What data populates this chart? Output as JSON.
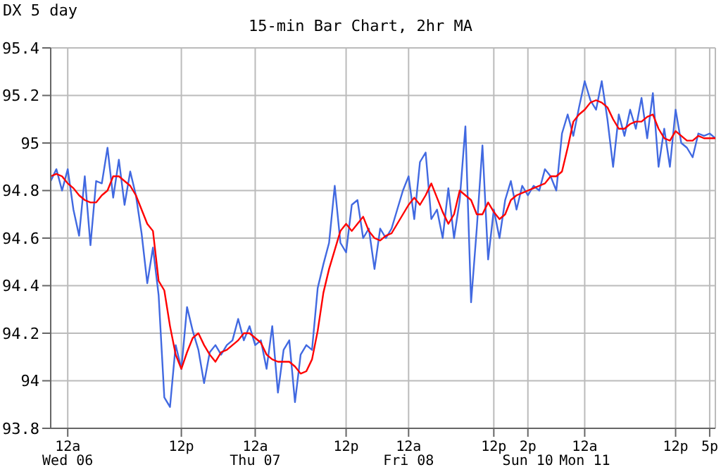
{
  "chart_data": {
    "type": "line",
    "title": "15-min Bar Chart, 2hr MA",
    "subtitle": "DX 5 day",
    "categories": [
      null,
      null,
      null,
      "12a\nWed 06",
      null,
      null,
      null,
      null,
      null,
      null,
      null,
      null,
      null,
      null,
      null,
      null,
      null,
      null,
      null,
      null,
      null,
      null,
      null,
      "12p",
      null,
      null,
      null,
      null,
      null,
      null,
      null,
      null,
      null,
      null,
      null,
      null,
      "12a\nThu 07",
      null,
      null,
      null,
      null,
      null,
      null,
      null,
      null,
      null,
      null,
      null,
      null,
      null,
      null,
      null,
      "12p",
      null,
      null,
      null,
      null,
      null,
      null,
      null,
      null,
      null,
      null,
      "12a\nFri 08",
      null,
      null,
      null,
      null,
      null,
      null,
      null,
      null,
      null,
      null,
      null,
      null,
      null,
      null,
      "12p",
      null,
      null,
      null,
      null,
      null,
      "2p\nSun 10",
      null,
      null,
      null,
      null,
      null,
      null,
      null,
      null,
      null,
      "12a\nMon 11",
      null,
      null,
      null,
      null,
      null,
      null,
      null,
      null,
      null,
      null,
      null,
      null,
      null,
      null,
      null,
      "12p",
      null,
      null,
      null,
      null,
      null,
      "5p",
      null
    ],
    "ylim": [
      93.8,
      95.4
    ],
    "yticks": [
      93.8,
      94,
      94.2,
      94.4,
      94.6,
      94.8,
      95,
      95.2,
      95.4
    ],
    "grid": true,
    "marker": "none",
    "line_style": "solid",
    "series": [
      {
        "color": "#4169e1",
        "values": [
          94.84,
          94.89,
          94.8,
          94.89,
          94.72,
          94.61,
          94.86,
          94.57,
          94.84,
          94.83,
          94.98,
          94.77,
          94.93,
          94.74,
          94.88,
          94.78,
          94.62,
          94.41,
          94.56,
          94.36,
          93.93,
          93.89,
          94.15,
          94.05,
          94.31,
          94.21,
          94.13,
          93.99,
          94.12,
          94.15,
          94.11,
          94.15,
          94.17,
          94.26,
          94.17,
          94.23,
          94.15,
          94.17,
          94.05,
          94.23,
          93.95,
          94.13,
          94.17,
          93.91,
          94.11,
          94.15,
          94.13,
          94.39,
          94.49,
          94.58,
          94.82,
          94.58,
          94.54,
          94.74,
          94.76,
          94.6,
          94.64,
          94.47,
          94.64,
          94.6,
          94.64,
          94.72,
          94.8,
          94.86,
          94.68,
          94.92,
          94.96,
          94.68,
          94.72,
          94.6,
          94.81,
          94.6,
          94.76,
          95.07,
          94.33,
          94.64,
          94.99,
          94.51,
          94.72,
          94.6,
          94.76,
          94.84,
          94.72,
          94.82,
          94.78,
          94.82,
          94.8,
          94.89,
          94.86,
          94.8,
          95.04,
          95.12,
          95.03,
          95.15,
          95.26,
          95.18,
          95.14,
          95.26,
          95.1,
          94.9,
          95.12,
          95.03,
          95.14,
          95.06,
          95.19,
          95.02,
          95.21,
          94.9,
          95.06,
          94.9,
          95.14,
          95,
          94.98,
          94.94,
          95.04,
          95.03,
          95.04,
          95.02
        ]
      },
      {
        "color": "#ff0000",
        "values": [
          94.86,
          94.87,
          94.86,
          94.83,
          94.81,
          94.78,
          94.76,
          94.75,
          94.75,
          94.78,
          94.8,
          94.86,
          94.86,
          94.84,
          94.82,
          94.78,
          94.72,
          94.66,
          94.63,
          94.42,
          94.38,
          94.23,
          94.11,
          94.05,
          94.12,
          94.18,
          94.2,
          94.15,
          94.11,
          94.08,
          94.12,
          94.13,
          94.15,
          94.17,
          94.2,
          94.2,
          94.18,
          94.16,
          94.11,
          94.09,
          94.08,
          94.08,
          94.08,
          94.06,
          94.03,
          94.04,
          94.09,
          94.21,
          94.37,
          94.47,
          94.55,
          94.63,
          94.66,
          94.63,
          94.66,
          94.69,
          94.63,
          94.6,
          94.59,
          94.61,
          94.62,
          94.66,
          94.7,
          94.74,
          94.77,
          94.74,
          94.78,
          94.83,
          94.77,
          94.71,
          94.66,
          94.7,
          94.8,
          94.78,
          94.76,
          94.7,
          94.7,
          94.75,
          94.71,
          94.68,
          94.7,
          94.76,
          94.78,
          94.79,
          94.8,
          94.81,
          94.82,
          94.83,
          94.86,
          94.86,
          94.88,
          94.98,
          95.09,
          95.12,
          95.14,
          95.17,
          95.18,
          95.17,
          95.15,
          95.1,
          95.06,
          95.06,
          95.08,
          95.09,
          95.09,
          95.11,
          95.12,
          95.06,
          95.02,
          95.01,
          95.05,
          95.03,
          95.01,
          95.01,
          95.03,
          95.02,
          95.02,
          95.02
        ]
      }
    ]
  }
}
